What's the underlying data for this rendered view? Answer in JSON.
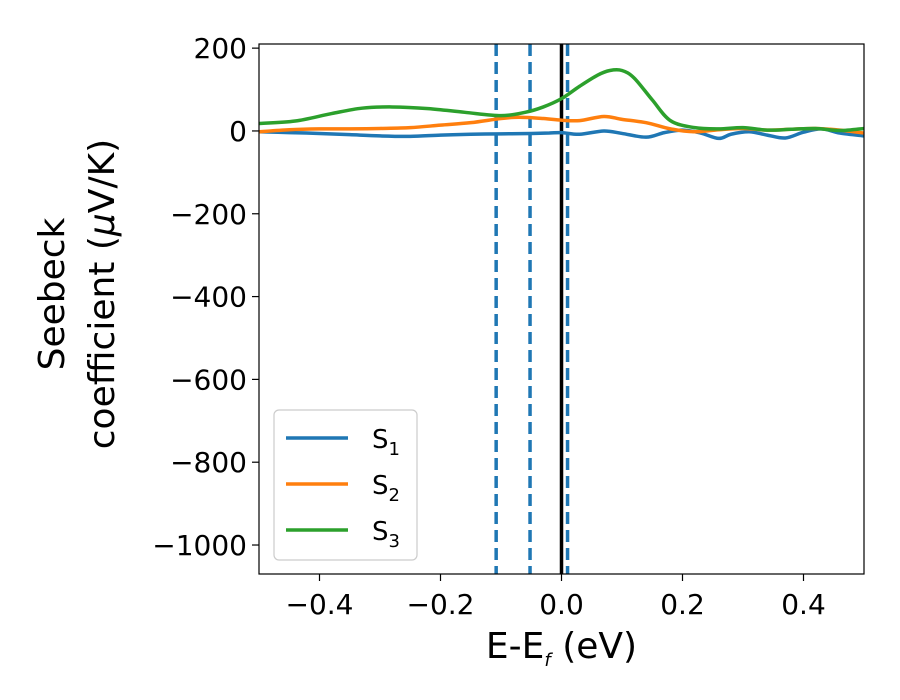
{
  "chart_data": {
    "type": "line",
    "title": "",
    "xlabel": {
      "main": "E-E",
      "sub": "f",
      "tail": " (eV)"
    },
    "ylabel": {
      "line1": "Seebeck",
      "line2_prefix": "coefficient  (",
      "mu": "μ",
      "line2_suffix": "V/K)"
    },
    "xlim": [
      -0.5,
      0.5
    ],
    "ylim": [
      -1070,
      210
    ],
    "xticks": [
      -0.4,
      -0.2,
      0.0,
      0.2,
      0.4
    ],
    "xtick_labels": [
      "−0.4",
      "−0.2",
      "0.0",
      "0.2",
      "0.4"
    ],
    "yticks": [
      200,
      0,
      -200,
      -400,
      -600,
      -800,
      -1000
    ],
    "ytick_labels": [
      "200",
      "0",
      "−200",
      "−400",
      "−600",
      "−800",
      "−1000"
    ],
    "grid": false,
    "legend_position": "lower-left",
    "vlines": [
      {
        "x": -0.108,
        "style": "dashed",
        "color": "#1f77b4"
      },
      {
        "x": -0.052,
        "style": "dashed",
        "color": "#1f77b4"
      },
      {
        "x": 0.01,
        "style": "dashed",
        "color": "#1f77b4"
      },
      {
        "x": 0.0,
        "style": "solid",
        "color": "#000000"
      }
    ],
    "series": [
      {
        "name": "S",
        "sub": "1",
        "color": "#1f77b4",
        "x": [
          -0.5,
          -0.45,
          -0.4,
          -0.35,
          -0.3,
          -0.25,
          -0.2,
          -0.15,
          -0.1,
          -0.05,
          -0.02,
          0.0,
          0.03,
          0.07,
          0.1,
          0.14,
          0.17,
          0.2,
          0.23,
          0.26,
          0.28,
          0.31,
          0.34,
          0.37,
          0.4,
          0.43,
          0.46,
          0.5
        ],
        "y": [
          -2,
          -4,
          -6,
          -9,
          -12,
          -13,
          -10,
          -8,
          -7,
          -6,
          -5,
          -4,
          -8,
          0,
          -6,
          -15,
          -4,
          2,
          -5,
          -18,
          -8,
          -2,
          -10,
          -17,
          -3,
          5,
          -5,
          -12
        ]
      },
      {
        "name": "S",
        "sub": "2",
        "color": "#ff7f0e",
        "x": [
          -0.5,
          -0.45,
          -0.4,
          -0.35,
          -0.3,
          -0.25,
          -0.2,
          -0.15,
          -0.1,
          -0.07,
          -0.03,
          0.0,
          0.03,
          0.07,
          0.1,
          0.14,
          0.18,
          0.22,
          0.26,
          0.3,
          0.34,
          0.38,
          0.42,
          0.46,
          0.5
        ],
        "y": [
          -2,
          3,
          5,
          5,
          6,
          8,
          14,
          20,
          30,
          33,
          30,
          26,
          25,
          35,
          28,
          20,
          5,
          -2,
          3,
          6,
          2,
          4,
          6,
          2,
          -5
        ]
      },
      {
        "name": "S",
        "sub": "3",
        "color": "#2ca02c",
        "x": [
          -0.5,
          -0.44,
          -0.38,
          -0.33,
          -0.28,
          -0.22,
          -0.16,
          -0.1,
          -0.06,
          -0.03,
          0.0,
          0.03,
          0.06,
          0.08,
          0.1,
          0.12,
          0.15,
          0.18,
          0.22,
          0.26,
          0.3,
          0.34,
          0.38,
          0.42,
          0.46,
          0.5
        ],
        "y": [
          18,
          24,
          42,
          55,
          58,
          54,
          45,
          37,
          45,
          58,
          78,
          108,
          135,
          146,
          146,
          128,
          75,
          25,
          8,
          5,
          8,
          2,
          4,
          6,
          1,
          6
        ]
      }
    ]
  }
}
